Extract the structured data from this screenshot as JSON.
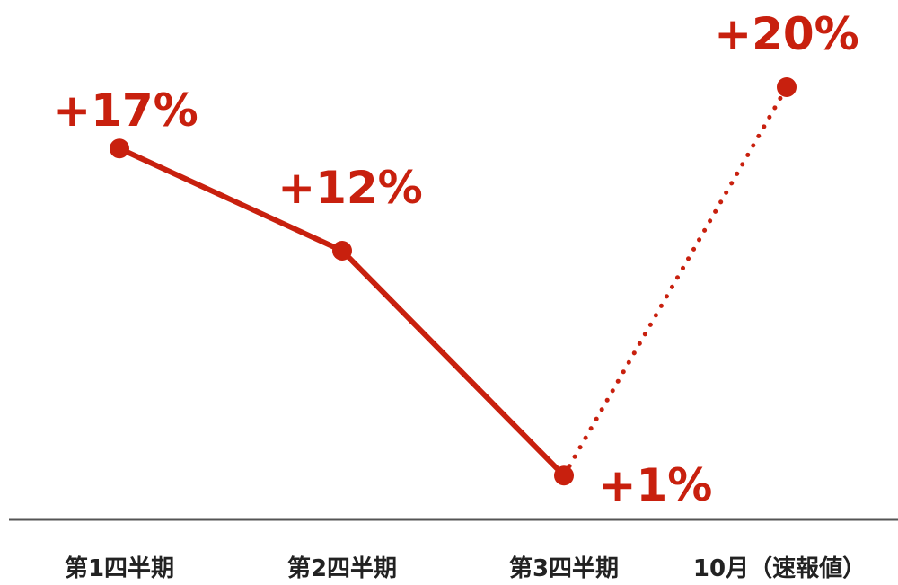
{
  "chart_data": {
    "type": "line",
    "categories": [
      "第1四半期",
      "第2四半期",
      "第3四半期",
      "10月（速報値）"
    ],
    "values": [
      17,
      12,
      1,
      20
    ],
    "data_labels": [
      "+17%",
      "+12%",
      "+1%",
      "+20%"
    ],
    "ylim": [
      0,
      20
    ],
    "grid": false,
    "legend": "none",
    "styles": [
      "solid",
      "solid",
      "dotted"
    ],
    "colors": {
      "series": "#c8200e",
      "axis": "#555555",
      "tick_text": "#222222"
    }
  }
}
